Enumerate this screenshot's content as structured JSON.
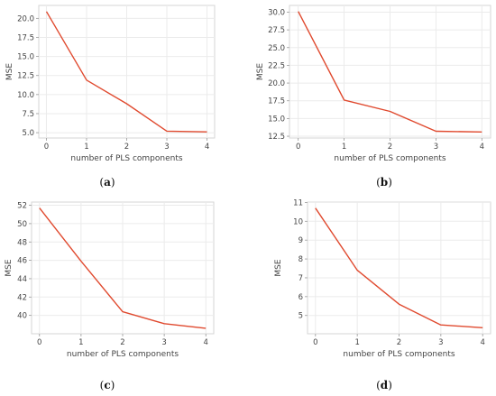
{
  "chart_data": [
    {
      "type": "line",
      "caption": "(a)",
      "caption_letter": "a",
      "xlabel": "number of PLS components",
      "ylabel": "MSE",
      "x": [
        0,
        1,
        2,
        3,
        4
      ],
      "series": [
        {
          "values": [
            20.9,
            11.9,
            8.8,
            5.2,
            5.1
          ]
        }
      ],
      "xticks": [
        "0",
        "1",
        "2",
        "3",
        "4"
      ],
      "yticks": [
        "5.0",
        "7.5",
        "10.0",
        "12.5",
        "15.0",
        "17.5",
        "20.0"
      ],
      "xlim": [
        -0.19,
        4.19
      ],
      "ylim": [
        4.3,
        21.7
      ],
      "line_color": "#e04a2f",
      "grid": true
    },
    {
      "type": "line",
      "caption": "(b)",
      "caption_letter": "b",
      "xlabel": "number of PLS components",
      "ylabel": "MSE",
      "x": [
        0,
        1,
        2,
        3,
        4
      ],
      "series": [
        {
          "values": [
            30.1,
            17.6,
            16.0,
            13.2,
            13.1
          ]
        }
      ],
      "xticks": [
        "0",
        "1",
        "2",
        "3",
        "4"
      ],
      "yticks": [
        "12.5",
        "15.0",
        "17.5",
        "20.0",
        "22.5",
        "25.0",
        "27.5",
        "30.0"
      ],
      "xlim": [
        -0.19,
        4.19
      ],
      "ylim": [
        12.25,
        30.95
      ],
      "line_color": "#e04a2f",
      "grid": true
    },
    {
      "type": "line",
      "caption": "(c)",
      "caption_letter": "c",
      "xlabel": "number of PLS components",
      "ylabel": "MSE",
      "x": [
        0,
        1,
        2,
        3,
        4
      ],
      "series": [
        {
          "values": [
            51.7,
            45.9,
            40.4,
            39.1,
            38.6
          ]
        }
      ],
      "xticks": [
        "0",
        "1",
        "2",
        "3",
        "4"
      ],
      "yticks": [
        "40",
        "42",
        "44",
        "46",
        "48",
        "50",
        "52"
      ],
      "xlim": [
        -0.19,
        4.19
      ],
      "ylim": [
        38.0,
        52.35
      ],
      "line_color": "#e04a2f",
      "grid": true
    },
    {
      "type": "line",
      "caption": "(d)",
      "caption_letter": "d",
      "xlabel": "number of PLS components",
      "ylabel": "MSE",
      "x": [
        0,
        1,
        2,
        3,
        4
      ],
      "series": [
        {
          "values": [
            10.7,
            7.4,
            5.6,
            4.5,
            4.35
          ]
        }
      ],
      "xticks": [
        "0",
        "1",
        "2",
        "3",
        "4"
      ],
      "yticks": [
        "5",
        "6",
        "7",
        "8",
        "9",
        "10",
        "11"
      ],
      "xlim": [
        -0.19,
        4.19
      ],
      "ylim": [
        4.03,
        11.02
      ],
      "line_color": "#e04a2f",
      "grid": true
    }
  ]
}
